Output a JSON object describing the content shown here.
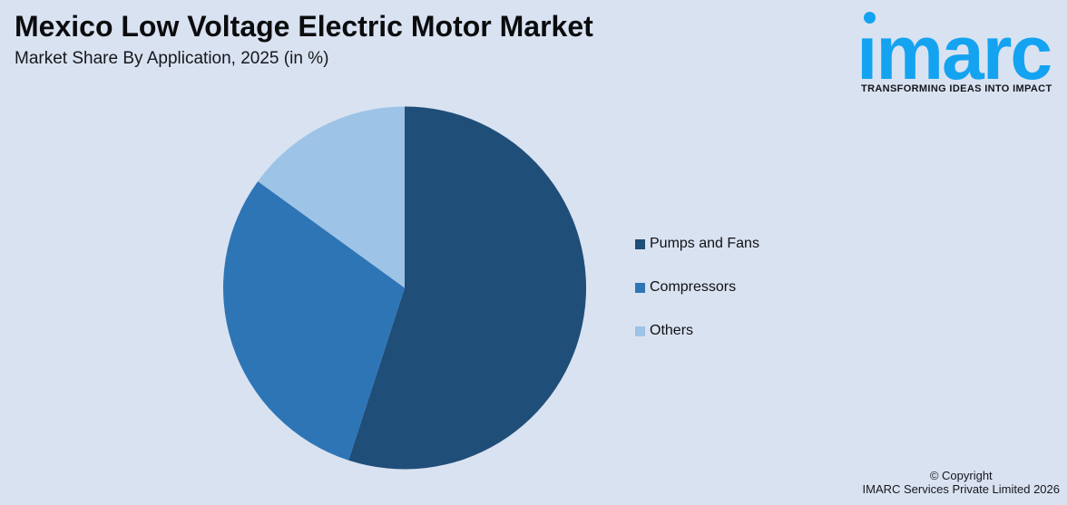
{
  "header": {
    "title": "Mexico Low Voltage Electric Motor Market",
    "subtitle": "Market Share By Application, 2025 (in %)"
  },
  "logo": {
    "wordmark": "imarc",
    "tagline": "TRANSFORMING IDEAS INTO IMPACT",
    "brand_color": "#14a3f0"
  },
  "chart_data": {
    "type": "pie",
    "title": "Mexico Low Voltage Electric Motor Market",
    "subtitle": "Market Share By Application, 2025 (in %)",
    "labels": [
      "Pumps and Fans",
      "Compressors",
      "Others"
    ],
    "values": [
      55,
      30,
      15
    ],
    "unit": "%",
    "colors": [
      "#1f4e79",
      "#2e75b6",
      "#9dc3e6"
    ],
    "start_angle_deg": 0,
    "direction": "clockwise",
    "legend_position": "right",
    "data_labels": false,
    "background": "#d9e2f1"
  },
  "footer": {
    "copyright_line1": "© Copyright",
    "copyright_line2": "IMARC Services Private Limited 2026"
  }
}
